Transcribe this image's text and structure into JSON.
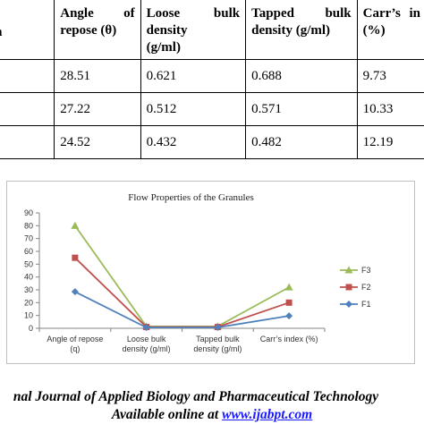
{
  "table": {
    "headers": [
      "Formulation",
      "Angle of repose (θ)",
      "Loose bulk density (g/ml)",
      "Tapped bulk density (g/ml)",
      "Carr’s index (%)"
    ],
    "header_visible": {
      "c0": "ation",
      "c1a": "Angle",
      "c1b": "of",
      "c1c": "repose (θ)",
      "c2a": "Loose",
      "c2b": "bulk",
      "c2c": "density",
      "c2d": "(g/ml)",
      "c3a": "Tapped",
      "c3b": "bulk",
      "c3c": "density (g/ml)",
      "c4a": "Carr’s",
      "c4b": "in",
      "c4c": "(%)"
    },
    "rows": [
      {
        "angle": "28.51",
        "loose": "0.621",
        "tapped": "0.688",
        "carr": "9.73"
      },
      {
        "angle": "27.22",
        "loose": "0.512",
        "tapped": "0.571",
        "carr": "10.33"
      },
      {
        "angle": "24.52",
        "loose": "0.432",
        "tapped": "0.482",
        "carr": "12.19"
      }
    ]
  },
  "chart_data": {
    "type": "line",
    "title": "Flow Properties of the Granules",
    "categories": [
      "Angle of repose (q)",
      "Loose bulk density  (g/ml)",
      "Tapped bulk density (g/ml)",
      "Carr’s index (%)"
    ],
    "category_lines": [
      [
        "Angle of repose",
        "(q)"
      ],
      [
        "Loose bulk",
        "density  (g/ml)"
      ],
      [
        "Tapped bulk",
        "density (g/ml)"
      ],
      [
        "Carr’s index (%)",
        ""
      ]
    ],
    "ylim": [
      0,
      90
    ],
    "yticks": [
      0,
      10,
      20,
      30,
      40,
      50,
      60,
      70,
      80,
      90
    ],
    "legend_position": "right",
    "series": [
      {
        "name": "F3",
        "values": [
          80,
          1.5,
          1.5,
          32
        ],
        "color": "#9bbb59",
        "marker": "triangle"
      },
      {
        "name": "F2",
        "values": [
          55,
          1,
          1,
          20
        ],
        "color": "#c0504d",
        "marker": "square"
      },
      {
        "name": "F1",
        "values": [
          28.5,
          0.6,
          0.7,
          9.7
        ],
        "color": "#4f81bd",
        "marker": "diamond"
      }
    ]
  },
  "footer": {
    "journal": "nal Journal of Applied Biology and Pharmaceutical Technology",
    "available_prefix": "Available online at ",
    "link_text": "www.ijabpt.com"
  }
}
